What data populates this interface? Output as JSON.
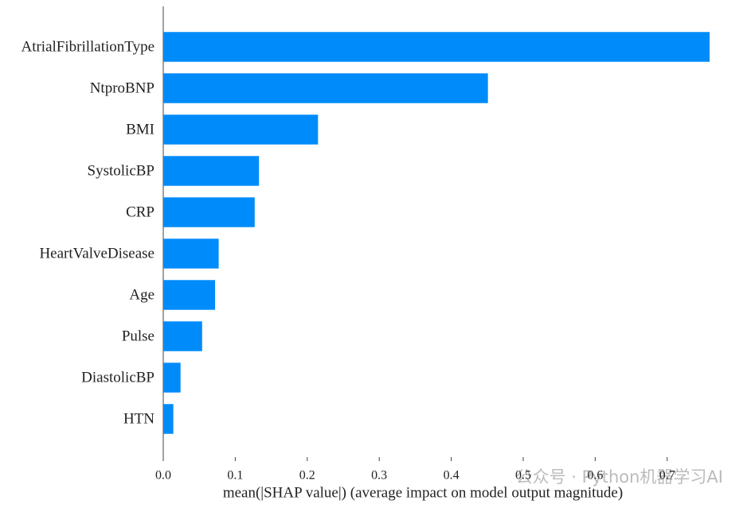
{
  "chart_data": {
    "type": "barh",
    "xlabel": "mean(|SHAP value|) (average impact on model output magnitude)",
    "categories": [
      "AtrialFibrillationType",
      "NtproBNP",
      "BMI",
      "SystolicBP",
      "CRP",
      "HeartValveDisease",
      "Age",
      "Pulse",
      "DiastolicBP",
      "HTN"
    ],
    "values": [
      0.759,
      0.451,
      0.215,
      0.133,
      0.127,
      0.077,
      0.072,
      0.054,
      0.024,
      0.014
    ],
    "color": "#008bfb",
    "xlim": [
      0,
      0.76
    ],
    "xticks": [
      {
        "value": 0,
        "label": "0.0"
      },
      0.1,
      0.2,
      0.3,
      0.4,
      0.5,
      0.6,
      0.7
    ],
    "watermark": "公众号 · Python机器学习AI"
  }
}
